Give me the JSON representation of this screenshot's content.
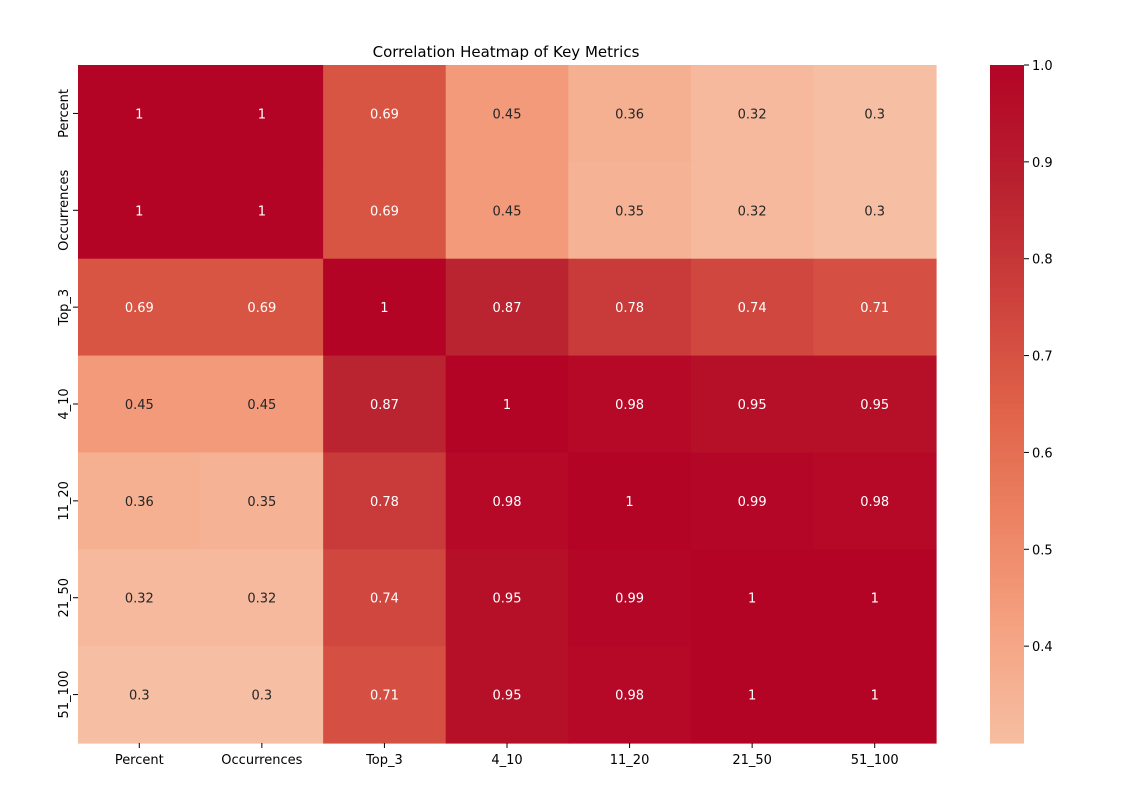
{
  "chart_data": {
    "type": "heatmap",
    "title": "Correlation Heatmap of Key Metrics",
    "x_labels": [
      "Percent",
      "Occurrences",
      "Top_3",
      "4_10",
      "11_20",
      "21_50",
      "51_100"
    ],
    "y_labels": [
      "Percent",
      "Occurrences",
      "Top_3",
      "4_10",
      "11_20",
      "21_50",
      "51_100"
    ],
    "values": [
      [
        1,
        1,
        0.69,
        0.45,
        0.36,
        0.32,
        0.3
      ],
      [
        1,
        1,
        0.69,
        0.45,
        0.35,
        0.32,
        0.3
      ],
      [
        0.69,
        0.69,
        1,
        0.87,
        0.78,
        0.74,
        0.71
      ],
      [
        0.45,
        0.45,
        0.87,
        1,
        0.98,
        0.95,
        0.95
      ],
      [
        0.36,
        0.35,
        0.78,
        0.98,
        1,
        0.99,
        0.98
      ],
      [
        0.32,
        0.32,
        0.74,
        0.95,
        0.99,
        1,
        1
      ],
      [
        0.3,
        0.3,
        0.71,
        0.95,
        0.98,
        1,
        1
      ]
    ],
    "value_range": [
      0.3,
      1.0
    ],
    "colorbar": {
      "ticks": [
        "1.0",
        "0.9",
        "0.8",
        "0.7",
        "0.6",
        "0.5",
        "0.4"
      ],
      "tick_values": [
        1.0,
        0.9,
        0.8,
        0.7,
        0.6,
        0.5,
        0.4
      ],
      "location": "right"
    },
    "colormap": [
      "#f6bea2",
      "#f5a382",
      "#ec8262",
      "#df6148",
      "#cb3f3c",
      "#b81f2e",
      "#b40426"
    ],
    "annotations_visible": true,
    "grid": false
  }
}
